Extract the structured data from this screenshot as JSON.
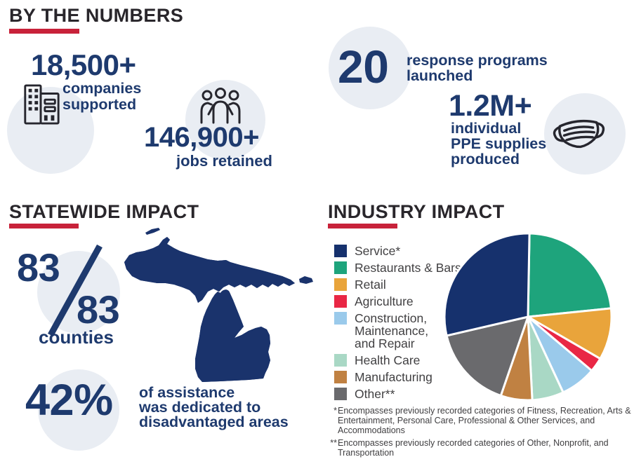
{
  "colors": {
    "navy_text": "#1e3a6e",
    "heading_dark": "#29262b",
    "accent_red": "#c8223a",
    "circle_bg": "#e9edf3",
    "icon_dark": "#26262e",
    "map_navy": "#1a336c",
    "legend_text": "#414042"
  },
  "icons": {
    "companies": "building-icon",
    "jobs": "people-group-icon",
    "ppe": "face-mask-icon",
    "statewide": "michigan-county-map"
  },
  "by_numbers": {
    "heading": "BY THE NUMBERS",
    "companies_value": "18,500+",
    "companies_label": "companies\nsupported",
    "jobs_value": "146,900+",
    "jobs_label": "jobs retained",
    "programs_value": "20",
    "programs_label": "response programs\nlaunched",
    "ppe_value": "1.2M+",
    "ppe_label": "individual\nPPE supplies\nproduced"
  },
  "statewide": {
    "heading": "STATEWIDE IMPACT",
    "counties_top": "83",
    "counties_bottom": "83",
    "counties_label": "counties",
    "pct_value": "42%",
    "pct_label": "of assistance\nwas dedicated to\ndisadvantaged areas"
  },
  "industry": {
    "heading": "INDUSTRY IMPACT",
    "footnote1_marker": "*",
    "footnote1_text": "Encompasses previously recorded categories of Fitness, Recreation, Arts & Entertainment, Personal Care, Professional & Other Services, and Accommodations",
    "footnote2_marker": "**",
    "footnote2_text": "Encompasses previously recorded categories of Other, Nonprofit, and Transportation"
  },
  "chart_data": {
    "type": "pie",
    "title": "INDUSTRY IMPACT",
    "legend_position": "left",
    "start_angle_deg": 1,
    "slices_clockwise_from_top": [
      {
        "label": "Restaurants & Bars",
        "value_pct": 23.1,
        "color": "#1ea47c"
      },
      {
        "label": "Retail",
        "value_pct": 10.0,
        "color": "#e9a43b"
      },
      {
        "label": "Agriculture",
        "value_pct": 2.8,
        "color": "#e92745"
      },
      {
        "label": "Construction, Maintenance, and Repair",
        "value_pct": 6.9,
        "color": "#9acaeb"
      },
      {
        "label": "Health Care",
        "value_pct": 6.1,
        "color": "#a9d8c5"
      },
      {
        "label": "Manufacturing",
        "value_pct": 6.1,
        "color": "#c08142"
      },
      {
        "label": "Other**",
        "value_pct": 16.1,
        "color": "#6a6a6d"
      },
      {
        "label": "Service*",
        "value_pct": 28.9,
        "color": "#16316d"
      }
    ],
    "legend": [
      {
        "label": "Service*",
        "color": "#16316d"
      },
      {
        "label": "Restaurants & Bars",
        "color": "#1ea47c"
      },
      {
        "label": "Retail",
        "color": "#e9a43b"
      },
      {
        "label": "Agriculture",
        "color": "#e92745"
      },
      {
        "label": "Construction,\nMaintenance,\nand Repair",
        "color": "#9acaeb"
      },
      {
        "label": "Health Care",
        "color": "#a9d8c5"
      },
      {
        "label": "Manufacturing",
        "color": "#c08142"
      },
      {
        "label": "Other**",
        "color": "#6a6a6d"
      }
    ]
  }
}
